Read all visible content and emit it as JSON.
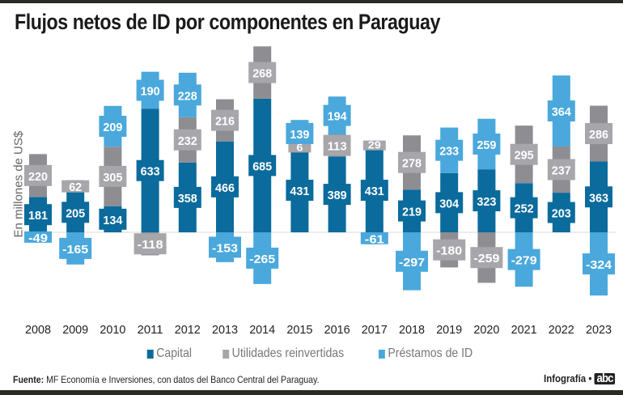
{
  "chart_data": {
    "type": "bar",
    "stacked": true,
    "title": "Flujos netos de ID por componentes en Paraguay",
    "ylabel": "En millones de US$",
    "xlabel": "",
    "categories": [
      "2008",
      "2009",
      "2010",
      "2011",
      "2012",
      "2013",
      "2014",
      "2015",
      "2016",
      "2017",
      "2018",
      "2019",
      "2020",
      "2021",
      "2022",
      "2023"
    ],
    "series": [
      {
        "name": "Capital",
        "color": "#0a6b9c",
        "values": [
          181,
          205,
          134,
          633,
          358,
          466,
          685,
          431,
          389,
          431,
          219,
          304,
          323,
          252,
          203,
          363
        ]
      },
      {
        "name": "Utilidades reinvertidas",
        "color": "#a7a6ab",
        "dark_color": "#8e8d92",
        "values": [
          220,
          62,
          305,
          -118,
          232,
          216,
          268,
          6,
          113,
          29,
          278,
          -180,
          -259,
          295,
          237,
          286
        ]
      },
      {
        "name": "Préstamos de ID",
        "color": "#4aa8dc",
        "values": [
          -49,
          -165,
          209,
          190,
          228,
          -153,
          -265,
          139,
          194,
          -61,
          -297,
          233,
          259,
          -279,
          364,
          -324
        ]
      }
    ],
    "ylim": [
      -340,
      960
    ],
    "grid": false,
    "legend": "bottom-center"
  },
  "footer": {
    "source_label": "Fuente:",
    "source_text": " MF Economía e Inversiones, con datos del Banco Central del Paraguay.",
    "credit": "Infografía •",
    "logo": "abc"
  }
}
